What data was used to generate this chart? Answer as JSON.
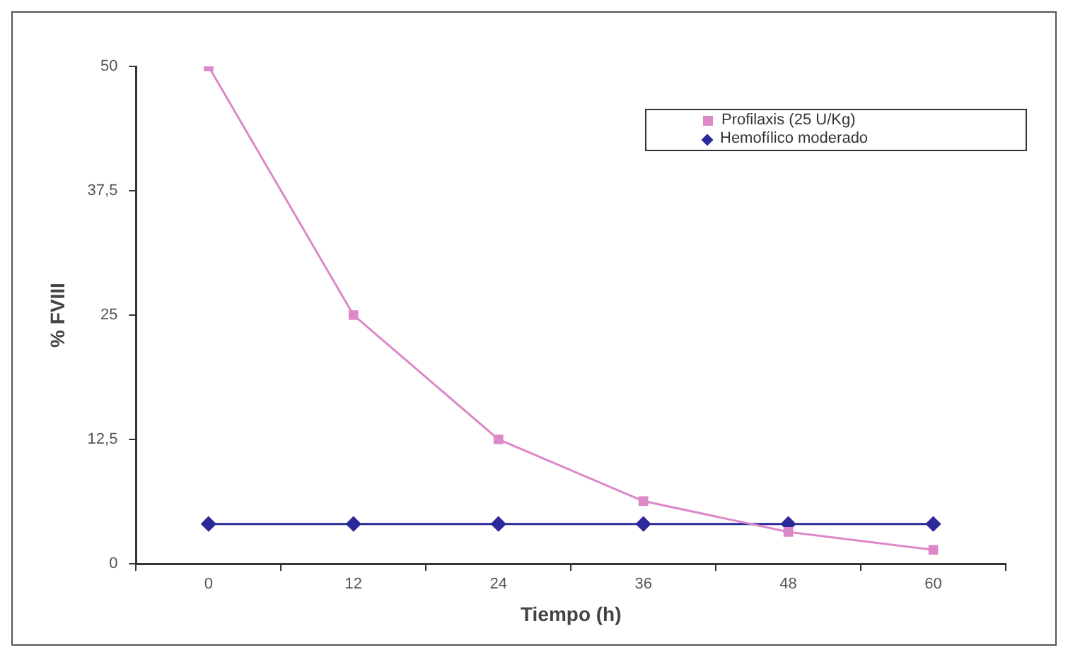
{
  "chart_data": {
    "type": "line",
    "xlabel": "Tiempo (h)",
    "ylabel": "% FVIII",
    "categories": [
      "0",
      "12",
      "24",
      "36",
      "48",
      "60"
    ],
    "series": [
      {
        "name": "Profilaxis (25 U/Kg)",
        "color": "#dd88c8",
        "marker": "square",
        "values": [
          50,
          25,
          12.5,
          6.3,
          3.2,
          1.4
        ]
      },
      {
        "name": "Hemofílico moderado",
        "color": "#2a2a99",
        "marker": "diamond",
        "values": [
          4,
          4,
          4,
          4,
          4,
          4
        ]
      }
    ],
    "ylim": [
      0,
      50
    ],
    "yticks": [
      {
        "value": 0,
        "label": "0"
      },
      {
        "value": 12.5,
        "label": "12,5"
      },
      {
        "value": 25,
        "label": "25"
      },
      {
        "value": 37.5,
        "label": "37,5"
      },
      {
        "value": 50,
        "label": "50"
      }
    ],
    "grid": false,
    "legend": "top right"
  }
}
